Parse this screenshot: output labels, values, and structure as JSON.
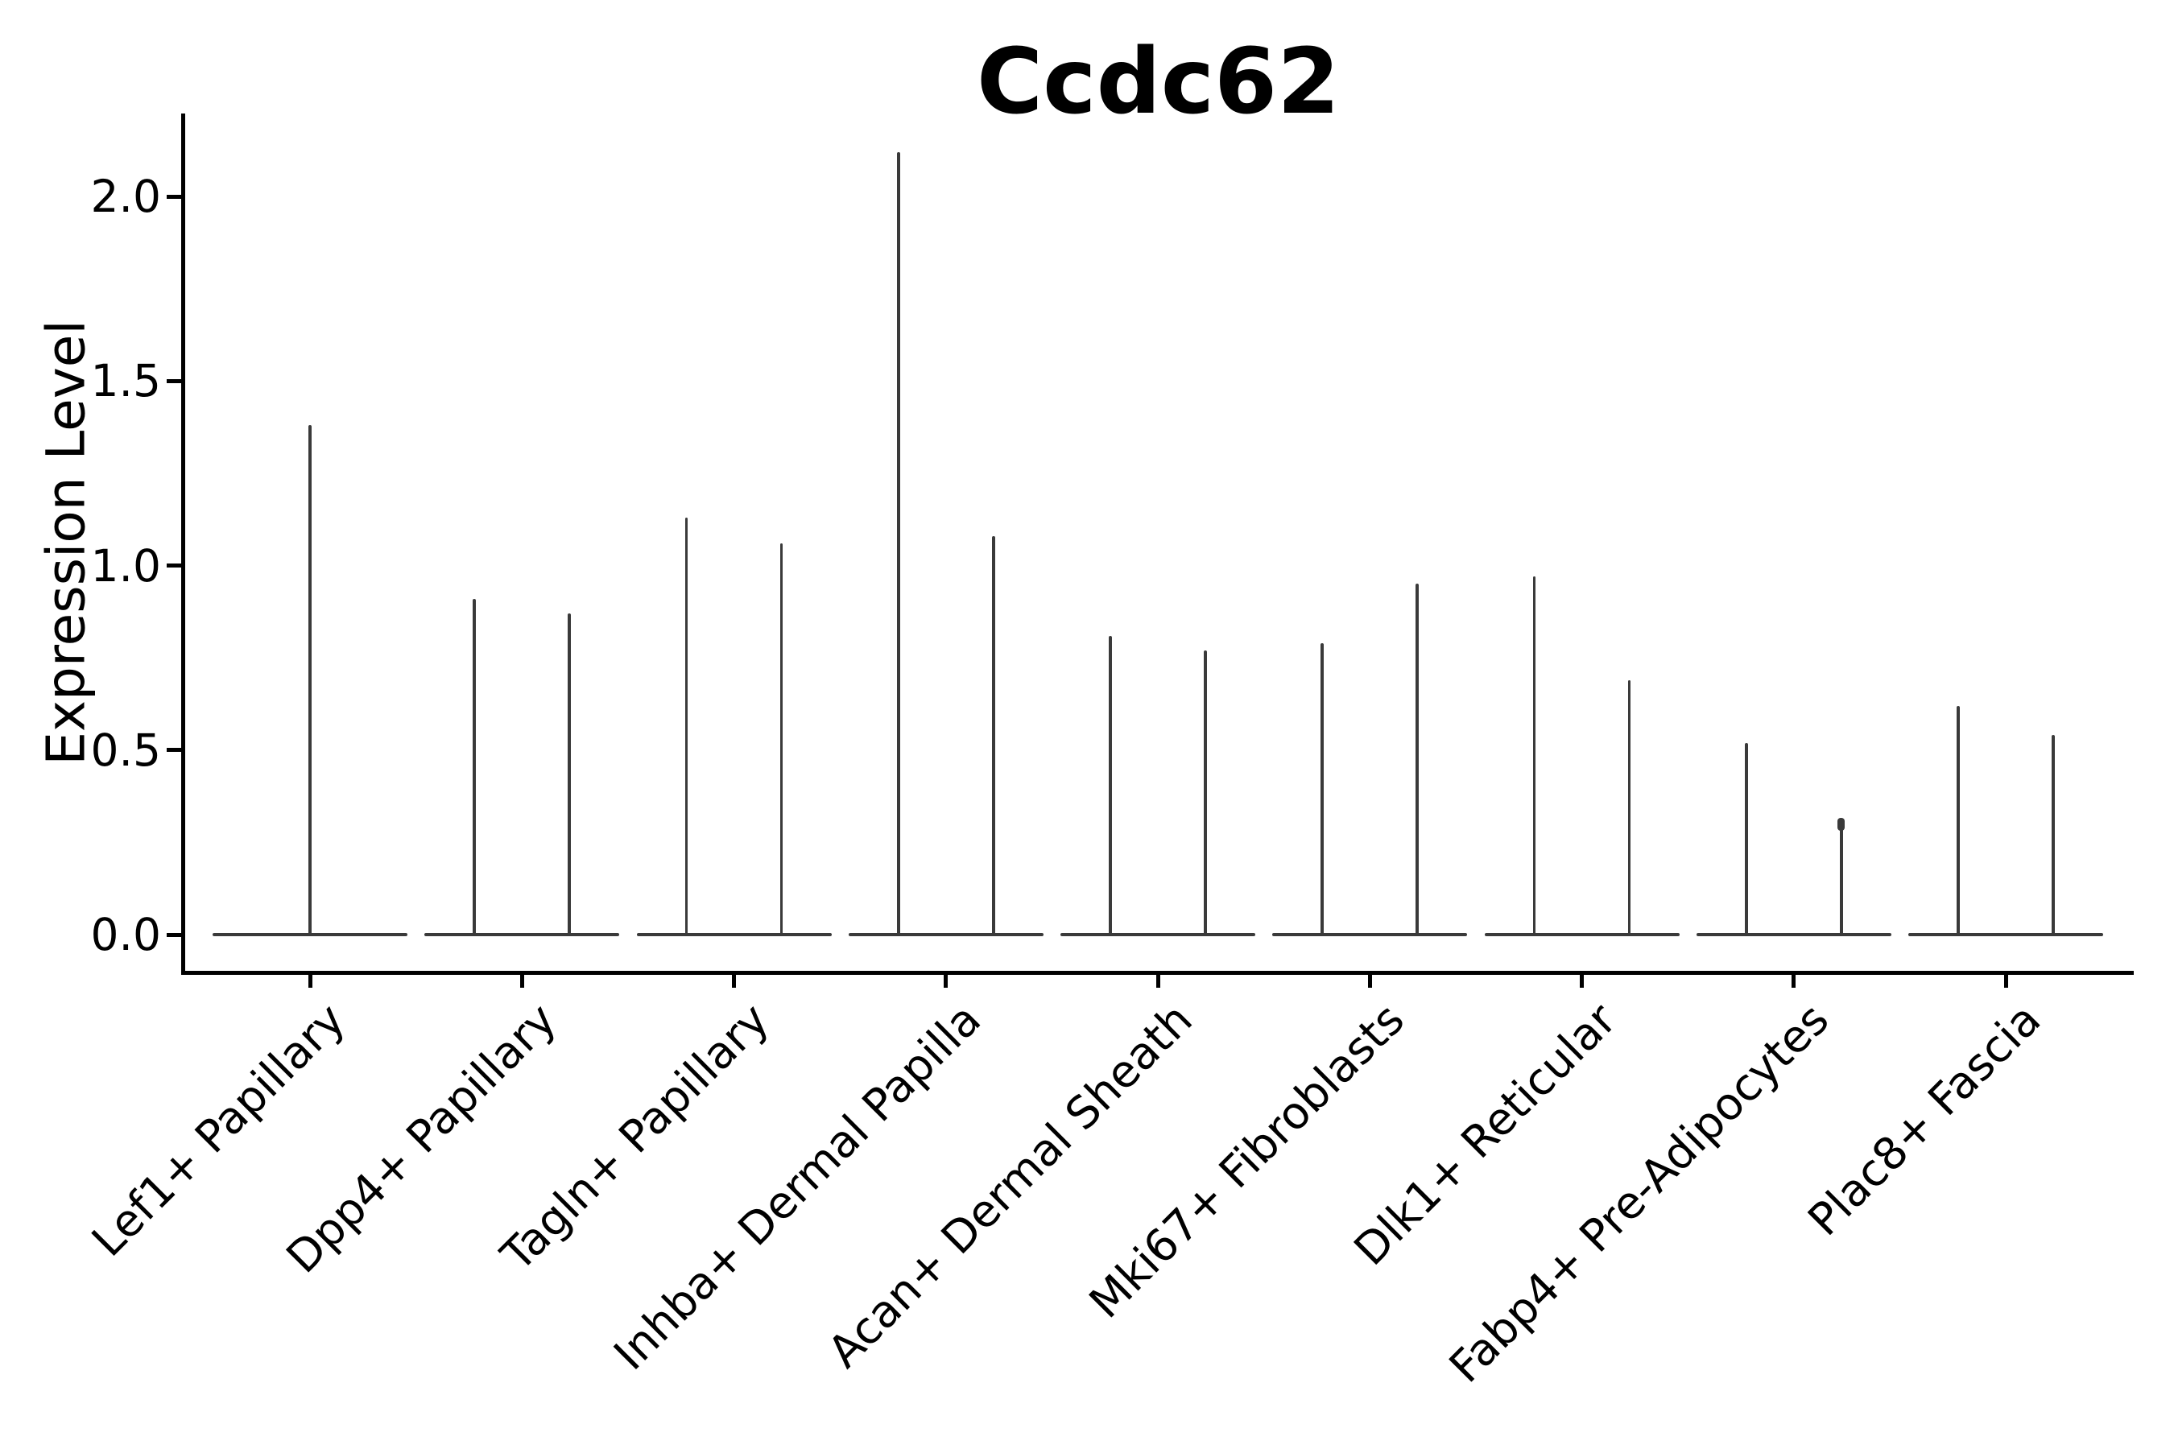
{
  "figure": {
    "title": "Ccdc62"
  },
  "y_axis": {
    "label": "Expression Level",
    "tick_labels": [
      "0.0",
      "0.5",
      "1.0",
      "1.5",
      "2.0"
    ]
  },
  "x_axis": {
    "tick_labels": [
      "Lef1+ Papillary",
      "Dpp4+ Papillary",
      "Tagln+ Papillary",
      "Inhba+ Dermal Papilla",
      "Acan+ Dermal Sheath",
      "Mki67+ Fibroblasts",
      "Dlk1+ Reticular",
      "Fabp4+ Pre-Adipocytes",
      "Plac8+ Fascia"
    ]
  },
  "colors": {
    "background": "#ffffff",
    "axis": "#000000",
    "text": "#000000",
    "violin": "#3a3a3a"
  },
  "chart_data": {
    "type": "violin",
    "title": "Ccdc62",
    "xlabel": "",
    "ylabel": "Expression Level",
    "ylim": [
      -0.1,
      2.22
    ],
    "yticks": [
      0.0,
      0.5,
      1.0,
      1.5,
      2.0
    ],
    "grid": false,
    "legend": "none",
    "baseline_value": 0.0,
    "categories": [
      "Lef1+ Papillary",
      "Dpp4+ Papillary",
      "Tagln+ Papillary",
      "Inhba+ Dermal Papilla",
      "Acan+ Dermal Sheath",
      "Mki67+ Fibroblasts",
      "Dlk1+ Reticular",
      "Fabp4+ Pre-Adipocytes",
      "Plac8+ Fascia"
    ],
    "violins": [
      {
        "category": "Lef1+ Papillary",
        "spikes": [
          {
            "dodge": 0,
            "max": 1.38
          }
        ]
      },
      {
        "category": "Dpp4+ Papillary",
        "spikes": [
          {
            "dodge": -0.224,
            "max": 0.91
          },
          {
            "dodge": 0.224,
            "max": 0.87
          }
        ]
      },
      {
        "category": "Tagln+ Papillary",
        "spikes": [
          {
            "dodge": -0.224,
            "max": 1.13
          },
          {
            "dodge": 0.224,
            "max": 1.06
          }
        ]
      },
      {
        "category": "Inhba+ Dermal Papilla",
        "spikes": [
          {
            "dodge": -0.224,
            "max": 2.12
          },
          {
            "dodge": 0.224,
            "max": 1.08
          }
        ]
      },
      {
        "category": "Acan+ Dermal Sheath",
        "spikes": [
          {
            "dodge": -0.224,
            "max": 0.81
          },
          {
            "dodge": 0.224,
            "max": 0.77
          }
        ]
      },
      {
        "category": "Mki67+ Fibroblasts",
        "spikes": [
          {
            "dodge": -0.224,
            "max": 0.79
          },
          {
            "dodge": 0.224,
            "max": 0.95
          }
        ]
      },
      {
        "category": "Dlk1+ Reticular",
        "spikes": [
          {
            "dodge": -0.224,
            "max": 0.97
          },
          {
            "dodge": 0.224,
            "max": 0.69
          }
        ]
      },
      {
        "category": "Fabp4+ Pre-Adipocytes",
        "spikes": [
          {
            "dodge": -0.224,
            "max": 0.52
          },
          {
            "dodge": 0.224,
            "max": 0.31,
            "tip_bump": true
          }
        ]
      },
      {
        "category": "Plac8+ Fascia",
        "spikes": [
          {
            "dodge": -0.224,
            "max": 0.62
          },
          {
            "dodge": 0.224,
            "max": 0.54
          }
        ]
      }
    ],
    "notes": "Nearly all observations sit at 0 (flat horizontal slivers); thin vertical spikes reach each group's maximum expression."
  }
}
